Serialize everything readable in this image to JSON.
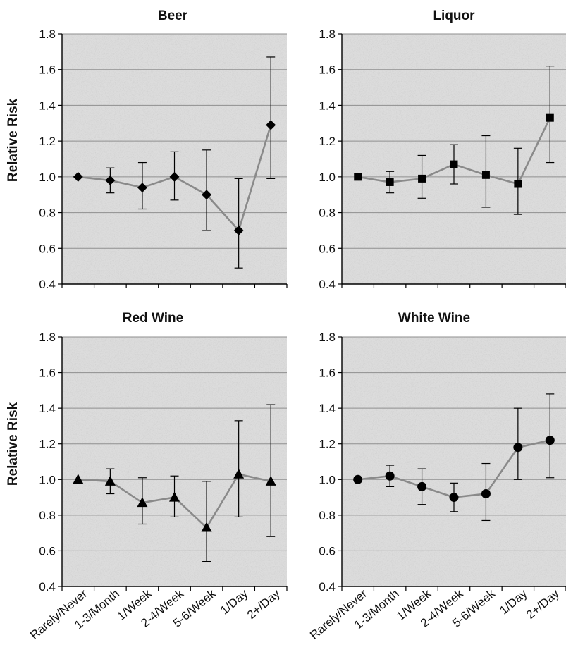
{
  "figure": {
    "ylabel": "Relative Risk",
    "categories": [
      "Rarely/Never",
      "1-3/Month",
      "1/Week",
      "2-4/Week",
      "5-6/Week",
      "1/Day",
      "2+/Day"
    ]
  },
  "chart_data": [
    {
      "type": "line",
      "title": "Beer",
      "ylabel": "Relative Risk",
      "xlabel": "",
      "ylim": [
        0.4,
        1.8
      ],
      "yticks": [
        "0.4",
        "0.6",
        "0.8",
        "1.0",
        "1.2",
        "1.4",
        "1.6",
        "1.8"
      ],
      "grid": true,
      "marker": "diamond",
      "categories": [
        "Rarely/Never",
        "1-3/Month",
        "1/Week",
        "2-4/Week",
        "5-6/Week",
        "1/Day",
        "2+/Day"
      ],
      "values": [
        1.0,
        0.98,
        0.94,
        1.0,
        0.9,
        0.7,
        1.29
      ],
      "lower": [
        1.0,
        0.91,
        0.82,
        0.87,
        0.7,
        0.49,
        0.99
      ],
      "upper": [
        1.0,
        1.05,
        1.08,
        1.14,
        1.15,
        0.99,
        1.67
      ],
      "show_category_labels": false
    },
    {
      "type": "line",
      "title": "Liquor",
      "ylabel": "",
      "xlabel": "",
      "ylim": [
        0.4,
        1.8
      ],
      "yticks": [
        "0.4",
        "0.6",
        "0.8",
        "1.0",
        "1.2",
        "1.4",
        "1.6",
        "1.8"
      ],
      "grid": true,
      "marker": "square",
      "categories": [
        "Rarely/Never",
        "1-3/Month",
        "1/Week",
        "2-4/Week",
        "5-6/Week",
        "1/Day",
        "2+/Day"
      ],
      "values": [
        1.0,
        0.97,
        0.99,
        1.07,
        1.01,
        0.96,
        1.33
      ],
      "lower": [
        1.0,
        0.91,
        0.88,
        0.96,
        0.83,
        0.79,
        1.08
      ],
      "upper": [
        1.0,
        1.03,
        1.12,
        1.18,
        1.23,
        1.16,
        1.62
      ],
      "show_category_labels": false
    },
    {
      "type": "line",
      "title": "Red Wine",
      "ylabel": "Relative Risk",
      "xlabel": "",
      "ylim": [
        0.4,
        1.8
      ],
      "yticks": [
        "0.4",
        "0.6",
        "0.8",
        "1.0",
        "1.2",
        "1.4",
        "1.6",
        "1.8"
      ],
      "grid": true,
      "marker": "triangle",
      "categories": [
        "Rarely/Never",
        "1-3/Month",
        "1/Week",
        "2-4/Week",
        "5-6/Week",
        "1/Day",
        "2+/Day"
      ],
      "values": [
        1.0,
        0.99,
        0.87,
        0.9,
        0.73,
        1.03,
        0.99
      ],
      "lower": [
        1.0,
        0.92,
        0.75,
        0.79,
        0.54,
        0.79,
        0.68
      ],
      "upper": [
        1.0,
        1.06,
        1.01,
        1.02,
        0.99,
        1.33,
        1.42
      ],
      "show_category_labels": true
    },
    {
      "type": "line",
      "title": "White Wine",
      "ylabel": "",
      "xlabel": "",
      "ylim": [
        0.4,
        1.8
      ],
      "yticks": [
        "0.4",
        "0.6",
        "0.8",
        "1.0",
        "1.2",
        "1.4",
        "1.6",
        "1.8"
      ],
      "grid": true,
      "marker": "circle",
      "categories": [
        "Rarely/Never",
        "1-3/Month",
        "1/Week",
        "2-4/Week",
        "5-6/Week",
        "1/Day",
        "2+/Day"
      ],
      "values": [
        1.0,
        1.02,
        0.96,
        0.9,
        0.92,
        1.18,
        1.22
      ],
      "lower": [
        1.0,
        0.96,
        0.86,
        0.82,
        0.77,
        1.0,
        1.01
      ],
      "upper": [
        1.0,
        1.08,
        1.06,
        0.98,
        1.09,
        1.4,
        1.48
      ],
      "show_category_labels": true
    }
  ],
  "colors": {
    "plot_background": "#dcdcdc",
    "grid": "#8f8f8f",
    "line": "#8a8a8a",
    "marker": "#000000",
    "axis": "#000000",
    "errorbar": "#000000"
  }
}
